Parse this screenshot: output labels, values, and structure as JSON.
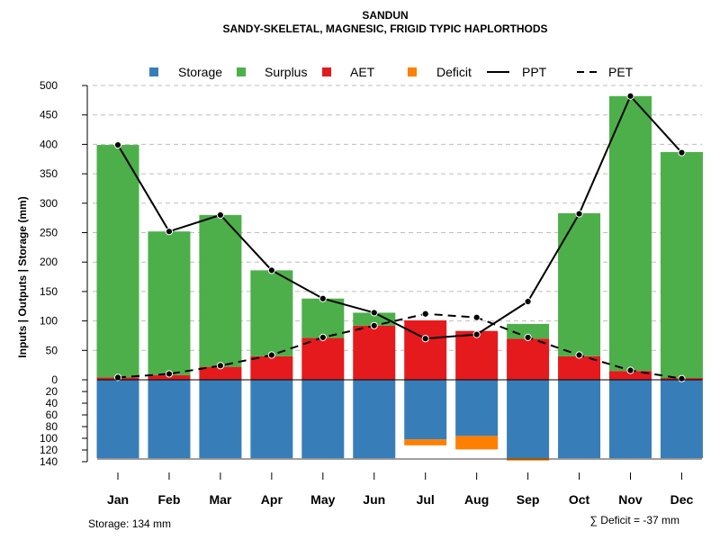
{
  "chart_data": {
    "type": "bar",
    "title": "SANDUN",
    "subtitle": "SANDY-SKELETAL, MAGNESIC, FRIGID TYPIC HAPLORTHODS",
    "ylabel": "Inputs | Outputs | Storage    (mm)",
    "categories": [
      "Jan",
      "Feb",
      "Mar",
      "Apr",
      "May",
      "Jun",
      "Jul",
      "Aug",
      "Sep",
      "Oct",
      "Nov",
      "Dec"
    ],
    "upper_ylim": [
      0,
      500
    ],
    "upper_ticks": [
      0,
      50,
      100,
      150,
      200,
      250,
      300,
      350,
      400,
      450,
      500
    ],
    "lower_ylim": [
      0,
      140
    ],
    "lower_ticks": [
      20,
      40,
      60,
      80,
      100,
      120,
      140
    ],
    "grid": true,
    "legend_position": "top",
    "series": [
      {
        "name": "Storage",
        "kind": "bar-down",
        "color": "#377EB8",
        "values": [
          134,
          134,
          134,
          134,
          134,
          134,
          102,
          96,
          134,
          134,
          134,
          134
        ]
      },
      {
        "name": "Surplus",
        "kind": "bar-stack",
        "color": "#4DAF4A",
        "values": [
          395,
          244,
          258,
          146,
          67,
          22,
          0,
          0,
          25,
          243,
          467,
          384
        ]
      },
      {
        "name": "AET",
        "kind": "bar-stack",
        "color": "#E41A1C",
        "values": [
          4,
          8,
          22,
          40,
          71,
          92,
          101,
          83,
          70,
          40,
          15,
          3
        ]
      },
      {
        "name": "Deficit",
        "kind": "bar-down-stack",
        "color": "#FF7F00",
        "values": [
          0,
          0,
          0,
          0,
          0,
          0,
          10,
          23,
          4,
          0,
          0,
          0
        ]
      },
      {
        "name": "PPT",
        "kind": "line",
        "dash": "solid",
        "color": "#000000",
        "values": [
          399,
          252,
          280,
          186,
          138,
          114,
          70,
          77,
          133,
          282,
          482,
          386
        ]
      },
      {
        "name": "PET",
        "kind": "line",
        "dash": "dashed",
        "color": "#000000",
        "values": [
          4,
          10,
          24,
          42,
          72,
          92,
          112,
          106,
          72,
          42,
          16,
          2
        ]
      }
    ],
    "notes": {
      "storage": "Storage: 134 mm",
      "deficit": "∑ Deficit = -37 mm"
    }
  }
}
